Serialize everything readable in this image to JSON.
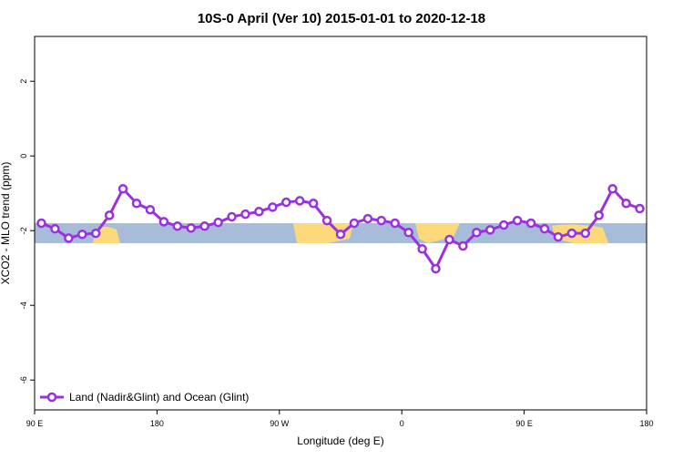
{
  "chart_data": {
    "type": "line",
    "title": "10S-0 April (Ver 10)   2015-01-01 to 2020-12-18",
    "x_label": "Longitude (deg E)",
    "y_label": "XCO2 - MLO trend (ppm)",
    "x": [
      95,
      105,
      115,
      125,
      135,
      145,
      155,
      165,
      175,
      185,
      195,
      205,
      215,
      225,
      235,
      245,
      255,
      265,
      275,
      285,
      295,
      305,
      315,
      325,
      335,
      345,
      355,
      365,
      375,
      385,
      395,
      405,
      415,
      425,
      435,
      445,
      455,
      465,
      475,
      485,
      495,
      505,
      515,
      525,
      535
    ],
    "series": [
      {
        "name": "Land (Nadir&Glint) and Ocean (Glint)",
        "color": "#9b30e0",
        "values": [
          -1.8,
          -1.95,
          -2.2,
          -2.1,
          -2.07,
          -1.59,
          -0.88,
          -1.27,
          -1.44,
          -1.76,
          -1.88,
          -1.93,
          -1.88,
          -1.78,
          -1.63,
          -1.56,
          -1.49,
          -1.37,
          -1.24,
          -1.2,
          -1.27,
          -1.73,
          -2.1,
          -1.8,
          -1.68,
          -1.73,
          -1.8,
          -2.05,
          -2.49,
          -3.02,
          -2.24,
          -2.41,
          -2.05,
          -1.98,
          -1.85,
          -1.73,
          -1.8,
          -1.95,
          -2.17,
          -2.07,
          -2.07,
          -1.59,
          -0.88,
          -1.27,
          -1.41
        ]
      }
    ],
    "xlim": [
      90,
      540
    ],
    "xticks": [
      {
        "value": 90,
        "label": "90 E"
      },
      180,
      {
        "value": 270,
        "label": "90 W"
      },
      {
        "value": 360,
        "label": "0"
      },
      {
        "value": 450,
        "label": "90 E"
      },
      {
        "value": 540,
        "label": "180"
      }
    ],
    "ylim": [
      -6.8,
      3.2
    ],
    "yticks": [
      2,
      0,
      -2,
      -4,
      -6
    ],
    "legend": "bottom-left"
  }
}
